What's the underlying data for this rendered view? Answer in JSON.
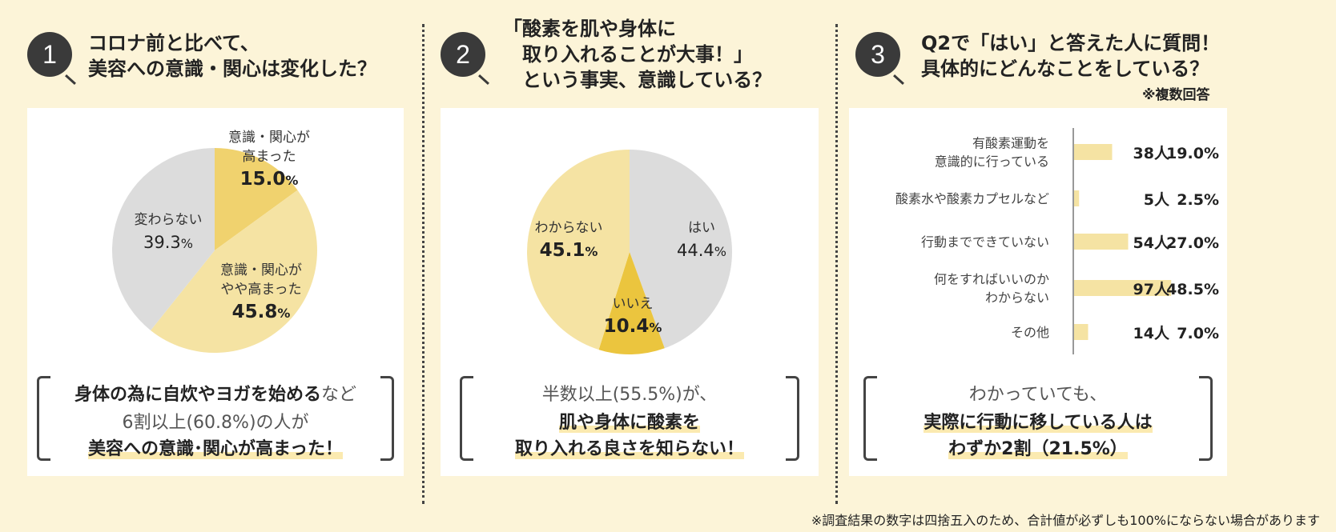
{
  "panels": [
    {
      "number": "1",
      "title": "コロナ前と比べて、\n美容への意識・関心は変化した？",
      "summary": {
        "line1_bold": "身体の為に自炊やヨガを始める",
        "line1_tail": "など",
        "line2": "6割以上(60.8%)の人が",
        "line3": "美容への意識･関心が高まった！"
      }
    },
    {
      "number": "2",
      "title": "「酸素を肌や身体に\n　取り入れることが大事！」\n　という事実、意識している？",
      "summary": {
        "line1": "半数以上(55.5%)が、",
        "line2": "肌や身体に酸素を",
        "line3": "取り入れる良さを知らない！"
      }
    },
    {
      "number": "3",
      "title": "Q2で「はい」と答えた人に質問！\n具体的にどんなことをしている？",
      "note": "※複数回答",
      "summary": {
        "line1": "わかっていても、",
        "line2": "実際に行動に移している人は",
        "line3": "わずか2割（21.5%）"
      }
    }
  ],
  "chart_data": [
    {
      "type": "pie",
      "slices": [
        {
          "label": "意識・関心が\n高まった",
          "value": 15.0,
          "display": "15.0",
          "color": "#f0d26e"
        },
        {
          "label": "意識・関心が\nやや高まった",
          "value": 45.8,
          "display": "45.8",
          "color": "#f5e3a3"
        },
        {
          "label": "変わらない",
          "value": 39.3,
          "display": "39.3",
          "color": "#dcdcdc"
        }
      ]
    },
    {
      "type": "pie",
      "slices": [
        {
          "label": "はい",
          "value": 44.4,
          "display": "44.4",
          "color": "#dcdcdc"
        },
        {
          "label": "いいえ",
          "value": 10.4,
          "display": "10.4",
          "color": "#ebc53e"
        },
        {
          "label": "わからない",
          "value": 45.1,
          "display": "45.1",
          "color": "#f5e3a3"
        }
      ]
    },
    {
      "type": "bar",
      "orientation": "horizontal",
      "categories": [
        "有酸素運動を\n意識的に行っている",
        "酸素水や酸素カプセルなど",
        "行動までできていない",
        "何をすればいいのか\nわからない",
        "その他"
      ],
      "values": [
        19.0,
        2.5,
        27.0,
        48.5,
        7.0
      ],
      "counts": [
        "38人",
        "5人",
        "54人",
        "97人",
        "14人"
      ],
      "percents": [
        "19.0%",
        "2.5%",
        "27.0%",
        "48.5%",
        "7.0%"
      ],
      "color": "#f5e3a3"
    }
  ],
  "footnote": "※調査結果の数字は四捨五入のため、合計値が必ずしも100%にならない場合があります",
  "colors": {
    "background": "#fcf4d8",
    "card": "#ffffff",
    "dark": "#3a3a3a"
  }
}
